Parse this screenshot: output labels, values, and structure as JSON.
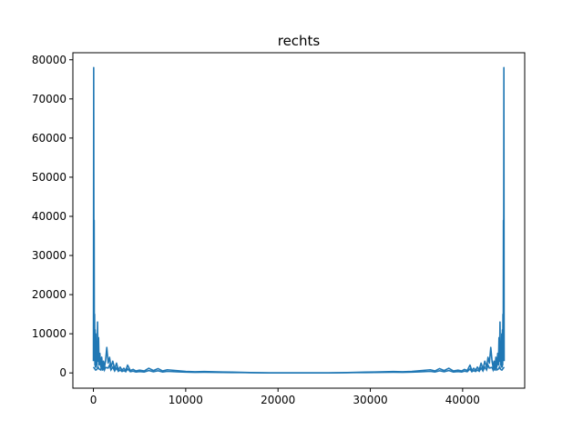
{
  "chart_data": {
    "type": "line",
    "title": "rechts",
    "xlabel": "",
    "ylabel": "",
    "xlim": [
      -2225,
      46725
    ],
    "ylim": [
      -3900,
      81800
    ],
    "xticks": [
      0,
      10000,
      20000,
      30000,
      40000
    ],
    "xtick_labels": [
      "0",
      "10000",
      "20000",
      "30000",
      "40000"
    ],
    "yticks": [
      0,
      10000,
      20000,
      30000,
      40000,
      50000,
      60000,
      70000,
      80000
    ],
    "ytick_labels": [
      "0",
      "10000",
      "20000",
      "30000",
      "40000",
      "50000",
      "60000",
      "70000",
      "80000"
    ],
    "grid": false,
    "legend": false,
    "color": "#1f77b4",
    "symmetric_about_x": 44500,
    "series": [
      {
        "x": [
          0,
          30,
          60,
          80,
          100,
          130,
          160,
          190,
          220,
          260,
          300,
          350,
          400,
          450,
          500,
          560,
          620,
          700,
          800,
          900,
          1000,
          1100,
          1200,
          1300,
          1450,
          1600,
          1750,
          1900,
          2100,
          2300,
          2500,
          2700,
          2900,
          3100,
          3300,
          3500,
          3700,
          4000,
          4300,
          4600,
          5000,
          5500,
          6000,
          6500,
          7000,
          7500,
          8000,
          9000,
          10000,
          11000,
          12000,
          13000,
          14000,
          15000,
          16000,
          17000,
          18000,
          19000,
          20000,
          21000,
          22000,
          22250
        ],
        "y": [
          3000,
          78000,
          15000,
          39000,
          8000,
          15000,
          2000,
          11000,
          1500,
          10000,
          1500,
          8000,
          2000,
          13000,
          3000,
          9000,
          2000,
          5000,
          1500,
          4000,
          1200,
          3000,
          1500,
          2800,
          6500,
          2500,
          4000,
          1500,
          3000,
          1000,
          2500,
          800,
          1500,
          700,
          1200,
          600,
          2000,
          600,
          900,
          500,
          700,
          500,
          1200,
          600,
          1100,
          500,
          800,
          600,
          400,
          300,
          350,
          300,
          250,
          200,
          150,
          100,
          50,
          20,
          10,
          10,
          20,
          20
        ]
      }
    ]
  }
}
